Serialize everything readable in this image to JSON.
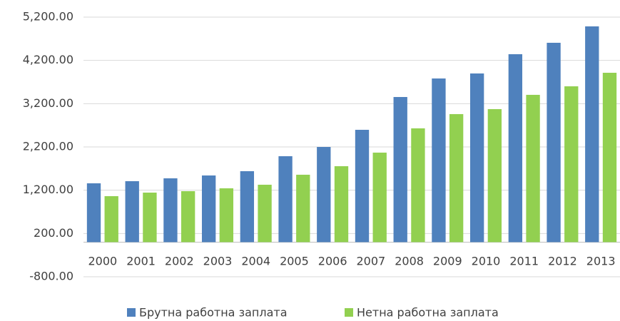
{
  "chart_data": {
    "type": "bar",
    "categories": [
      "2000",
      "2001",
      "2002",
      "2003",
      "2004",
      "2005",
      "2006",
      "2007",
      "2008",
      "2009",
      "2010",
      "2011",
      "2012",
      "2013"
    ],
    "series": [
      {
        "name": "Брутна работна заплата",
        "color": "#4f81bd",
        "values": [
          1360,
          1409,
          1475,
          1541,
          1640,
          1986,
          2200,
          2596,
          3354,
          3782,
          3898,
          4343,
          4607,
          4986
        ]
      },
      {
        "name": "Нетна работна заплата",
        "color": "#92d050",
        "values": [
          1063,
          1145,
          1178,
          1244,
          1327,
          1558,
          1755,
          2069,
          2630,
          2959,
          3074,
          3404,
          3601,
          3914
        ]
      }
    ],
    "ylim": [
      -800,
      5200
    ],
    "yticks": [
      {
        "value": -800,
        "label": "-800.00"
      },
      {
        "value": 200,
        "label": "200.00"
      },
      {
        "value": 1200,
        "label": "1,200.00"
      },
      {
        "value": 2200,
        "label": "2,200.00"
      },
      {
        "value": 3200,
        "label": "3,200.00"
      },
      {
        "value": 4200,
        "label": "4,200.00"
      },
      {
        "value": 5200,
        "label": "5,200.00"
      }
    ],
    "grid": true,
    "legend": "bottom"
  }
}
